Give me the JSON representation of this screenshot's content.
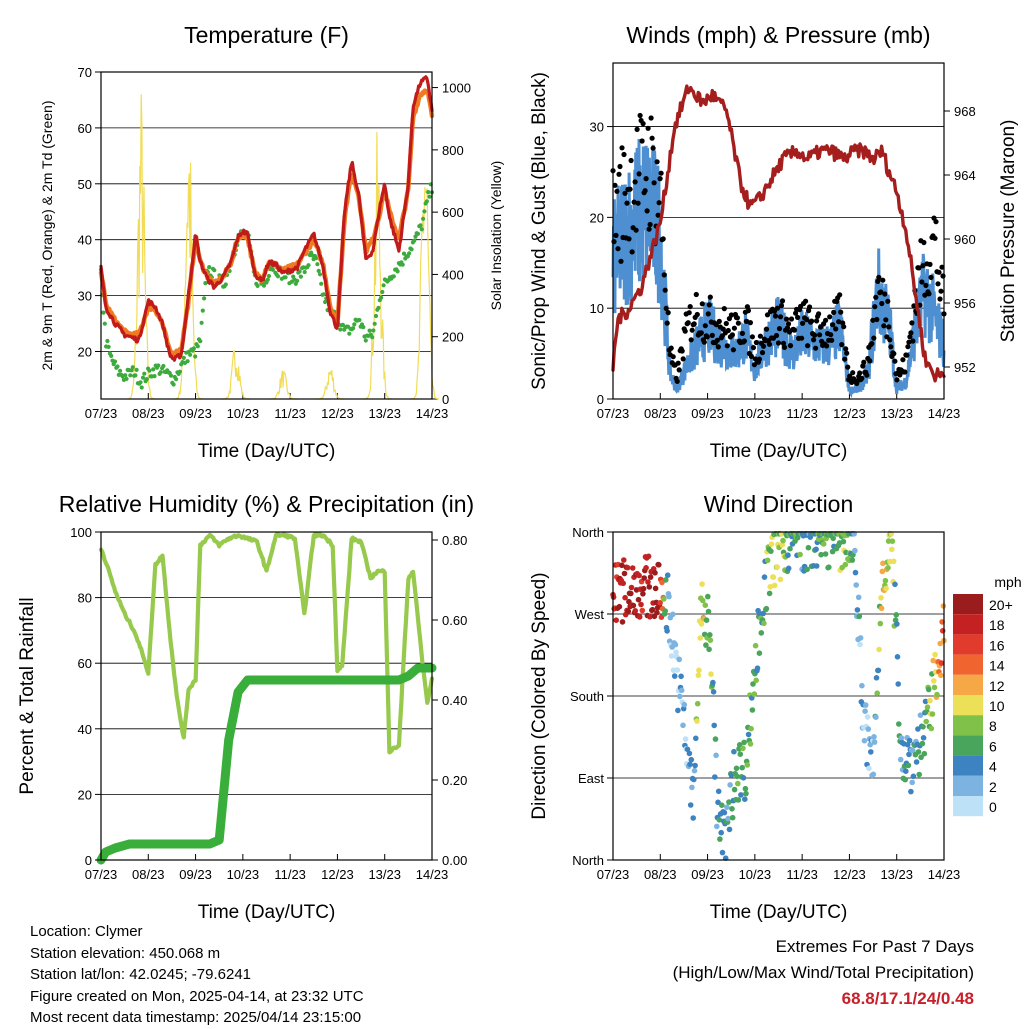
{
  "chart_data": [
    {
      "type": "line",
      "title": "Temperature (F)",
      "xlabel": "Time (Day/UTC)",
      "ylabel": "2m & 9m T (Red, Orange) & 2m Td (Green)",
      "y2label": "Solar Insolation (Yellow)",
      "x_ticks": [
        "07/23",
        "08/23",
        "09/23",
        "10/23",
        "11/23",
        "12/23",
        "13/23",
        "14/23"
      ],
      "y_ticks": [
        20,
        30,
        40,
        50,
        60,
        70
      ],
      "y2_ticks": [
        0,
        200,
        400,
        600,
        800,
        1000
      ],
      "ylim": [
        11.5,
        70
      ],
      "y2lim": [
        0,
        1050
      ],
      "grid": true,
      "colors": {
        "temp_2m": "#c01a1a",
        "temp_9m": "#f07a22",
        "dewpoint_2m": "#3daa3d",
        "solar": "#f2dc55"
      },
      "series": [
        {
          "key": "temp_2m",
          "axis": "left",
          "x": [
            0,
            0.1,
            0.3,
            0.5,
            0.65,
            0.8,
            1.0,
            1.15,
            1.3,
            1.45,
            1.55,
            1.7,
            1.85,
            2.0,
            2.1,
            2.25,
            2.4,
            2.6,
            2.75,
            2.9,
            3.0,
            3.1,
            3.25,
            3.4,
            3.55,
            3.7,
            3.85,
            4.0,
            4.15,
            4.3,
            4.5,
            4.7,
            4.85,
            5.0,
            5.15,
            5.3,
            5.45,
            5.6,
            5.75,
            5.9,
            6.0,
            6.1,
            6.3,
            6.5,
            6.6,
            6.75,
            6.9,
            7.0
          ],
          "y": [
            35,
            28,
            25,
            23,
            22.5,
            22,
            29,
            28,
            25,
            19.5,
            18.5,
            19.5,
            30,
            41,
            36,
            33,
            31.5,
            33.5,
            36,
            40.5,
            41.5,
            41,
            34,
            32.5,
            36,
            35.5,
            34,
            34.5,
            35,
            38,
            41,
            35,
            27,
            24,
            45,
            54,
            48,
            36.5,
            38,
            46,
            50,
            44,
            38,
            50,
            64,
            68,
            69,
            63
          ]
        },
        {
          "key": "temp_9m",
          "axis": "left",
          "x": [
            0,
            0.1,
            0.3,
            0.5,
            0.65,
            0.8,
            1.0,
            1.15,
            1.3,
            1.45,
            1.55,
            1.7,
            1.85,
            2.0,
            2.1,
            2.25,
            2.4,
            2.6,
            2.75,
            2.9,
            3.0,
            3.1,
            3.25,
            3.4,
            3.55,
            3.7,
            3.85,
            4.0,
            4.15,
            4.3,
            4.5,
            4.7,
            4.85,
            5.0,
            5.15,
            5.3,
            5.45,
            5.6,
            5.75,
            5.9,
            6.0,
            6.1,
            6.3,
            6.5,
            6.6,
            6.75,
            6.9,
            7.0
          ],
          "y": [
            34.5,
            28.5,
            25.5,
            23.5,
            23,
            23,
            28,
            27.5,
            25,
            20,
            19.5,
            20.5,
            29,
            40.5,
            36,
            33.5,
            32,
            33.5,
            36,
            40.5,
            41,
            40.5,
            34,
            33,
            36,
            35.5,
            34.5,
            35,
            35.5,
            37.5,
            40,
            35.5,
            28,
            25,
            44,
            52,
            48,
            38,
            40,
            45,
            49,
            45,
            40,
            49,
            62,
            66,
            67,
            62
          ]
        },
        {
          "key": "dewpoint_2m",
          "axis": "left",
          "x": [
            0,
            0.1,
            0.2,
            0.35,
            0.5,
            0.7,
            0.85,
            1.0,
            1.2,
            1.4,
            1.55,
            1.7,
            1.85,
            2.0,
            2.1,
            2.25,
            2.45,
            2.6,
            2.75,
            2.9,
            3.0,
            3.1,
            3.25,
            3.45,
            3.6,
            3.75,
            3.9,
            4.1,
            4.3,
            4.45,
            4.55,
            4.7,
            4.85,
            5.0,
            5.15,
            5.3,
            5.45,
            5.6,
            5.75,
            5.9,
            6.0,
            6.15,
            6.35,
            6.5,
            6.65,
            6.8,
            6.9,
            7.0
          ],
          "y": [
            34,
            22,
            19,
            16.5,
            15.5,
            16.5,
            14.5,
            16,
            17,
            16,
            15,
            17.5,
            19.5,
            20,
            22,
            35,
            33,
            32,
            36,
            40.5,
            41,
            41,
            33,
            32,
            35.5,
            34.5,
            33.5,
            33,
            34.5,
            37,
            36,
            30,
            27,
            26,
            23.5,
            24,
            26,
            22.5,
            23,
            30,
            32,
            34,
            36,
            38,
            40,
            43,
            47,
            49.5
          ]
        },
        {
          "key": "solar",
          "axis": "right",
          "peaks": [
            {
              "x": 0.85,
              "y": 1030
            },
            {
              "x": 1.85,
              "y": 990
            },
            {
              "x": 2.85,
              "y": 200
            },
            {
              "x": 3.85,
              "y": 100
            },
            {
              "x": 4.85,
              "y": 120
            },
            {
              "x": 5.85,
              "y": 880
            },
            {
              "x": 6.85,
              "y": 1010
            }
          ]
        }
      ]
    },
    {
      "type": "scatter",
      "title": "Winds (mph) & Pressure (mb)",
      "xlabel": "Time (Day/UTC)",
      "ylabel": "Sonic/Prop Wind & Gust (Blue, Black)",
      "y2label": "Station Pressure (Maroon)",
      "x_ticks": [
        "07/23",
        "08/23",
        "09/23",
        "10/23",
        "11/23",
        "12/23",
        "13/23",
        "14/23"
      ],
      "y_ticks": [
        0,
        10,
        20,
        30
      ],
      "y2_ticks": [
        952,
        956,
        960,
        964,
        968
      ],
      "ylim": [
        0,
        37
      ],
      "y2lim": [
        950,
        971
      ],
      "grid": true,
      "colors": {
        "wind": "#4d8fd0",
        "gust": "#000000",
        "pressure": "#a51e1e"
      },
      "series": [
        {
          "key": "wind",
          "axis": "left",
          "x": [
            0,
            0.25,
            0.5,
            0.75,
            1.0,
            1.2,
            1.35,
            1.5,
            1.7,
            2.0,
            2.3,
            2.6,
            2.8,
            3.0,
            3.2,
            3.5,
            3.8,
            4.0,
            4.3,
            4.6,
            4.8,
            5.0,
            5.2,
            5.4,
            5.6,
            5.85,
            6.0,
            6.2,
            6.4,
            6.6,
            6.8,
            7.0
          ],
          "y": [
            15,
            18,
            20,
            21,
            18,
            3,
            1,
            3,
            5,
            8,
            6,
            5,
            7,
            3,
            6,
            8,
            5,
            7,
            6,
            6,
            8,
            1,
            1,
            3,
            12,
            8,
            1,
            2,
            8,
            12,
            9,
            6
          ]
        },
        {
          "key": "gust",
          "axis": "left",
          "x": [
            0,
            0.25,
            0.5,
            0.75,
            1.0,
            1.2,
            1.35,
            1.5,
            1.7,
            2.0,
            2.3,
            2.6,
            2.8,
            3.0,
            3.2,
            3.5,
            3.8,
            4.0,
            4.3,
            4.6,
            4.8,
            5.0,
            5.2,
            5.4,
            5.6,
            5.85,
            6.0,
            6.2,
            6.4,
            6.6,
            6.8,
            7.0
          ],
          "y": [
            25,
            28,
            30,
            32,
            28,
            6,
            3,
            8,
            12,
            11,
            10,
            9,
            11,
            6,
            9,
            11,
            9,
            11,
            9,
            10,
            11,
            3,
            3,
            5,
            15,
            11,
            3,
            5,
            14,
            19,
            22,
            12
          ]
        },
        {
          "key": "pressure",
          "axis": "right",
          "x": [
            0,
            0.1,
            0.3,
            0.6,
            1.0,
            1.3,
            1.6,
            1.9,
            2.1,
            2.4,
            2.7,
            2.9,
            3.1,
            3.3,
            3.6,
            3.9,
            4.1,
            4.4,
            4.6,
            4.9,
            5.1,
            5.3,
            5.5,
            5.7,
            5.8,
            6.0,
            6.2,
            6.4,
            6.6,
            6.8,
            7.0
          ],
          "y": [
            952,
            955,
            955.5,
            957,
            961,
            967,
            969.5,
            968.5,
            969,
            968,
            963.5,
            962,
            962.5,
            963.5,
            965,
            965.5,
            965,
            965.5,
            965.5,
            965,
            965.5,
            965.5,
            965,
            965.5,
            964.5,
            963,
            960.5,
            956.5,
            952.5,
            951.5,
            951.5
          ]
        }
      ]
    },
    {
      "type": "line",
      "title": "Relative Humidity (%) & Precipitation (in)",
      "xlabel": "Time (Day/UTC)",
      "ylabel": "Percent & Total Rainfall",
      "x_ticks": [
        "07/23",
        "08/23",
        "09/23",
        "10/23",
        "11/23",
        "12/23",
        "13/23",
        "14/23"
      ],
      "y_ticks": [
        0,
        20,
        40,
        60,
        80,
        100
      ],
      "y2_ticks": [
        "0.00",
        "0.20",
        "0.40",
        "0.60",
        "0.80"
      ],
      "ylim": [
        0,
        100
      ],
      "y2lim": [
        0,
        0.82
      ],
      "grid": true,
      "colors": {
        "rh": "#96c94c",
        "precip": "#3aae3a"
      },
      "series": [
        {
          "key": "rh",
          "axis": "left",
          "x": [
            0,
            0.1,
            0.3,
            0.5,
            0.7,
            0.9,
            1.0,
            1.15,
            1.3,
            1.45,
            1.6,
            1.75,
            1.85,
            2.0,
            2.1,
            2.3,
            2.5,
            2.7,
            2.9,
            3.1,
            3.3,
            3.5,
            3.7,
            3.9,
            4.1,
            4.3,
            4.5,
            4.7,
            4.9,
            5.0,
            5.1,
            5.3,
            5.5,
            5.7,
            5.85,
            6.0,
            6.1,
            6.3,
            6.5,
            6.6,
            6.8,
            6.9,
            7.0
          ],
          "y": [
            95,
            91,
            82,
            75,
            70,
            62,
            57,
            90,
            93,
            70,
            50,
            37,
            52,
            55,
            96,
            99,
            96,
            98,
            99,
            98,
            97,
            88,
            99,
            99,
            98,
            75,
            99,
            99,
            96,
            58,
            59,
            98,
            97,
            86,
            88,
            88,
            33,
            35,
            86,
            88,
            60,
            48,
            55
          ]
        },
        {
          "key": "precip",
          "axis": "right",
          "x": [
            0,
            0.1,
            0.3,
            0.6,
            1.0,
            1.5,
            2.0,
            2.3,
            2.5,
            2.7,
            2.9,
            3.1,
            3.3,
            3.5,
            3.7,
            3.9,
            4.1,
            4.3,
            4.5,
            4.7,
            4.9,
            5.1,
            5.3,
            5.5,
            5.7,
            5.9,
            6.1,
            6.3,
            6.5,
            6.7,
            6.9,
            7.0
          ],
          "y": [
            0,
            0.02,
            0.03,
            0.04,
            0.04,
            0.04,
            0.04,
            0.04,
            0.05,
            0.3,
            0.42,
            0.45,
            0.45,
            0.45,
            0.45,
            0.45,
            0.45,
            0.45,
            0.45,
            0.45,
            0.45,
            0.45,
            0.45,
            0.45,
            0.45,
            0.45,
            0.45,
            0.45,
            0.46,
            0.48,
            0.48,
            0.48
          ]
        }
      ]
    },
    {
      "type": "scatter",
      "title": "Wind Direction",
      "xlabel": "Time (Day/UTC)",
      "ylabel": "Direction (Colored By Speed)",
      "x_ticks": [
        "07/23",
        "08/23",
        "09/23",
        "10/23",
        "11/23",
        "12/23",
        "13/23",
        "14/23"
      ],
      "y_ticks": [
        "North",
        "West",
        "South",
        "East",
        "North"
      ],
      "grid": true,
      "legend": {
        "unit": "mph",
        "labels": [
          "20+",
          "18",
          "16",
          "14",
          "12",
          "10",
          "8",
          "6",
          "4",
          "2",
          "0"
        ],
        "colors": [
          "#9b1c1c",
          "#c42222",
          "#e03b2c",
          "#f0652f",
          "#f7a846",
          "#ece059",
          "#80c14a",
          "#4aa55c",
          "#3d82c1",
          "#7db3e0",
          "#bde1f7"
        ]
      },
      "series": [
        {
          "name": "direction",
          "x": [
            0,
            0.2,
            0.4,
            0.6,
            0.8,
            1.0,
            1.15,
            1.5,
            1.7,
            1.85,
            2.05,
            2.2,
            2.35,
            2.6,
            2.8,
            3.1,
            3.3,
            3.5,
            3.7,
            3.9,
            4.1,
            4.3,
            4.5,
            4.7,
            4.9,
            5.1,
            5.3,
            5.5,
            5.7,
            5.9,
            6.1,
            6.3,
            6.5,
            6.7,
            6.9,
            7.0
          ],
          "y": [
            290,
            295,
            300,
            300,
            300,
            290,
            285,
            150,
            60,
            270,
            260,
            60,
            20,
            100,
            100,
            260,
            320,
            340,
            350,
            355,
            350,
            355,
            355,
            355,
            350,
            355,
            150,
            100,
            320,
            340,
            120,
            110,
            130,
            160,
            230,
            250
          ],
          "speed": [
            18,
            20,
            20,
            18,
            20,
            18,
            2,
            2,
            4,
            10,
            8,
            4,
            4,
            6,
            6,
            6,
            8,
            8,
            6,
            6,
            4,
            6,
            6,
            6,
            8,
            4,
            2,
            2,
            10,
            8,
            4,
            4,
            4,
            8,
            12,
            14
          ]
        }
      ]
    }
  ],
  "info": {
    "location": "Location: Clymer",
    "elevation": "Station elevation: 450.068 m",
    "latlon": "Station lat/lon: 42.0245; -79.6241",
    "created": "Figure created on Mon, 2025-04-14, at 23:32 UTC",
    "recent": "Most recent data timestamp: 2025/04/14 23:15:00"
  },
  "extremes": {
    "title": "Extremes For Past 7 Days",
    "subtitle": "(High/Low/Max Wind/Total Precipitation)",
    "values": "68.8/17.1/24/0.48"
  }
}
